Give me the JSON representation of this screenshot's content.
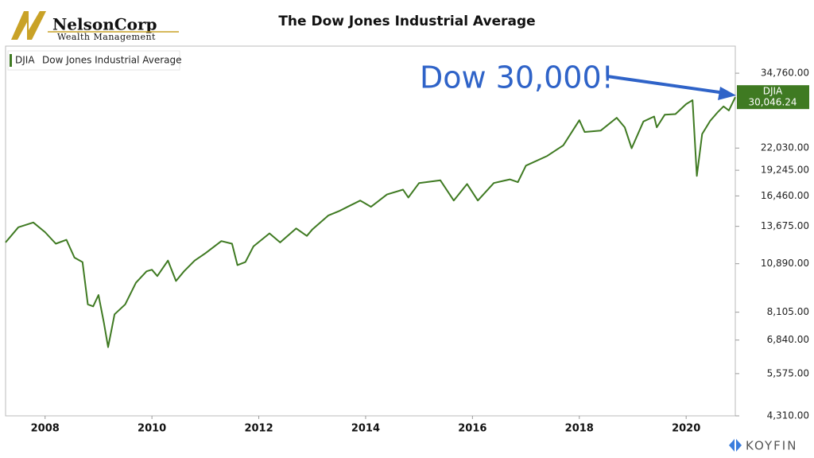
{
  "brand": {
    "name": "NelsonCorp",
    "tagline": "Wealth Management",
    "source": "KOYFIN"
  },
  "chart_data": {
    "type": "line",
    "title": "The Dow Jones Industrial Average",
    "annotation": "Dow 30,000!",
    "log_scale": true,
    "x": [
      2007.26,
      2007.5,
      2007.78,
      2008.0,
      2008.2,
      2008.4,
      2008.55,
      2008.7,
      2008.8,
      2008.9,
      2009.0,
      2009.1,
      2009.18,
      2009.3,
      2009.5,
      2009.7,
      2009.9,
      2010.0,
      2010.1,
      2010.3,
      2010.45,
      2010.6,
      2010.8,
      2011.0,
      2011.3,
      2011.5,
      2011.6,
      2011.75,
      2011.9,
      2012.2,
      2012.4,
      2012.7,
      2012.9,
      2013.0,
      2013.3,
      2013.5,
      2013.7,
      2013.9,
      2014.1,
      2014.4,
      2014.7,
      2014.8,
      2015.0,
      2015.4,
      2015.65,
      2015.9,
      2016.1,
      2016.4,
      2016.7,
      2016.85,
      2017.0,
      2017.4,
      2017.7,
      2018.0,
      2018.1,
      2018.4,
      2018.7,
      2018.85,
      2018.98,
      2019.2,
      2019.4,
      2019.45,
      2019.6,
      2019.8,
      2020.0,
      2020.12,
      2020.2,
      2020.3,
      2020.45,
      2020.6,
      2020.7,
      2020.8,
      2020.92
    ],
    "series": [
      {
        "name": "DJIA",
        "description": "Dow Jones Industrial Average",
        "color": "#3f7a22",
        "values": [
          12400,
          13600,
          14000,
          13200,
          12300,
          12600,
          11300,
          11000,
          8500,
          8400,
          9000,
          7600,
          6550,
          8000,
          8500,
          9700,
          10400,
          10500,
          10100,
          11100,
          9800,
          10400,
          11100,
          11600,
          12500,
          12300,
          10800,
          11000,
          12100,
          13100,
          12400,
          13500,
          12900,
          13400,
          14600,
          15000,
          15500,
          16000,
          15400,
          16600,
          17100,
          16300,
          17800,
          18100,
          16000,
          17700,
          16000,
          17800,
          18200,
          17900,
          19800,
          21000,
          22400,
          26100,
          24300,
          24500,
          26500,
          25000,
          22000,
          25900,
          26700,
          25000,
          27000,
          27100,
          28800,
          29500,
          18600,
          24000,
          26000,
          27500,
          28400,
          27700,
          30046.24
        ],
        "value_labels": [
          null,
          null,
          null,
          null,
          null,
          null,
          null,
          null,
          null,
          null,
          null,
          null,
          null,
          null,
          null,
          null,
          null,
          null,
          null,
          null,
          null,
          null,
          null,
          null,
          null,
          null,
          null,
          null,
          null,
          null,
          null,
          null,
          null,
          null,
          null,
          null,
          null,
          null,
          null,
          null,
          null,
          null,
          null,
          null,
          null,
          null,
          null,
          null,
          null,
          null,
          null,
          null,
          null,
          null,
          null,
          null,
          null,
          null,
          null,
          null,
          null,
          null,
          null,
          null,
          null,
          null,
          null,
          null,
          null,
          null,
          null,
          null,
          "30,046.24"
        ]
      }
    ],
    "xlim": [
      2007.26,
      2020.92
    ],
    "xticks": [
      2008,
      2010,
      2012,
      2014,
      2016,
      2018,
      2020
    ],
    "ylim": [
      4310,
      41000
    ],
    "yticks": [
      {
        "value": 4310,
        "label": "4,310.00"
      },
      {
        "value": 5575,
        "label": "5,575.00"
      },
      {
        "value": 6840,
        "label": "6,840.00"
      },
      {
        "value": 8105,
        "label": "8,105.00"
      },
      {
        "value": 10890,
        "label": "10,890.00"
      },
      {
        "value": 13675,
        "label": "13,675.00"
      },
      {
        "value": 16460,
        "label": "16,460.00"
      },
      {
        "value": 19245,
        "label": "19,245.00"
      },
      {
        "value": 22030,
        "label": "22,030.00"
      },
      {
        "value": 34760,
        "label": "34,760.00"
      }
    ],
    "legend": "top-left"
  }
}
